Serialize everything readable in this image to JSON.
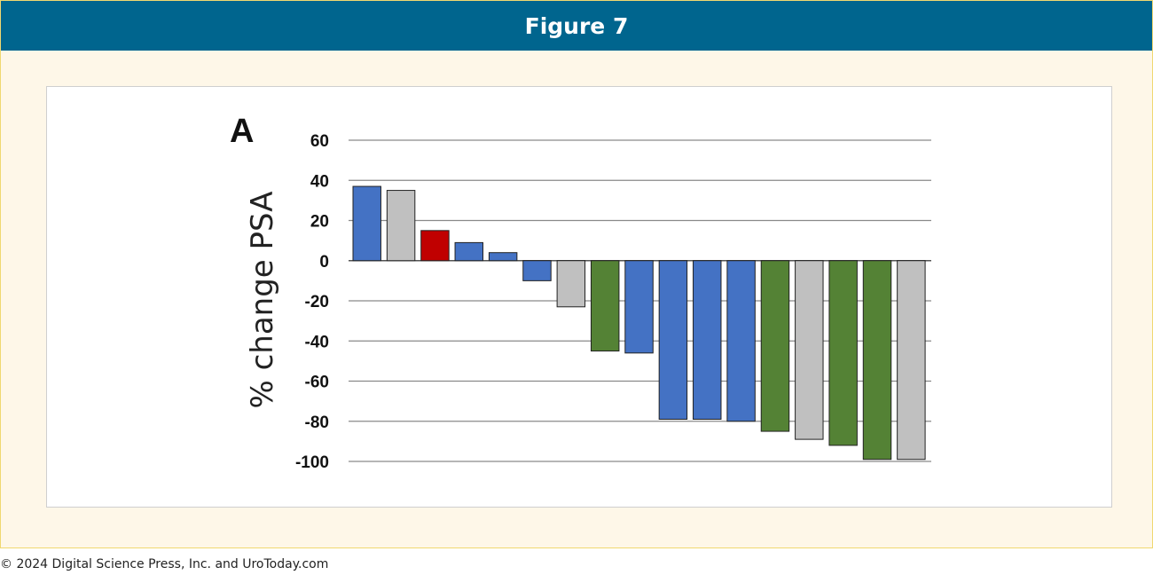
{
  "header": {
    "title": "Figure 7"
  },
  "footer": {
    "copyright": "© 2024 Digital Science Press, Inc. and UroToday.com"
  },
  "colors": {
    "header_bg": "#00658e",
    "frame_bg": "#fef7e8",
    "blue": "#4472c4",
    "gray": "#c0c0c0",
    "red": "#c00000",
    "green": "#548235"
  },
  "chart_data": {
    "type": "bar",
    "panel_label": "A",
    "ylabel": "% change PSA",
    "ylim": [
      -100,
      60
    ],
    "yticks": [
      60,
      40,
      20,
      0,
      -20,
      -40,
      -60,
      -80,
      -100
    ],
    "grid": true,
    "bars": [
      {
        "value": 37,
        "color": "blue"
      },
      {
        "value": 35,
        "color": "gray"
      },
      {
        "value": 15,
        "color": "red"
      },
      {
        "value": 9,
        "color": "blue"
      },
      {
        "value": 4,
        "color": "blue"
      },
      {
        "value": -10,
        "color": "blue"
      },
      {
        "value": -23,
        "color": "gray"
      },
      {
        "value": -45,
        "color": "green"
      },
      {
        "value": -46,
        "color": "blue"
      },
      {
        "value": -79,
        "color": "blue"
      },
      {
        "value": -79,
        "color": "blue"
      },
      {
        "value": -80,
        "color": "blue"
      },
      {
        "value": -85,
        "color": "green"
      },
      {
        "value": -89,
        "color": "gray"
      },
      {
        "value": -92,
        "color": "green"
      },
      {
        "value": -99,
        "color": "green"
      },
      {
        "value": -99,
        "color": "gray"
      }
    ]
  }
}
